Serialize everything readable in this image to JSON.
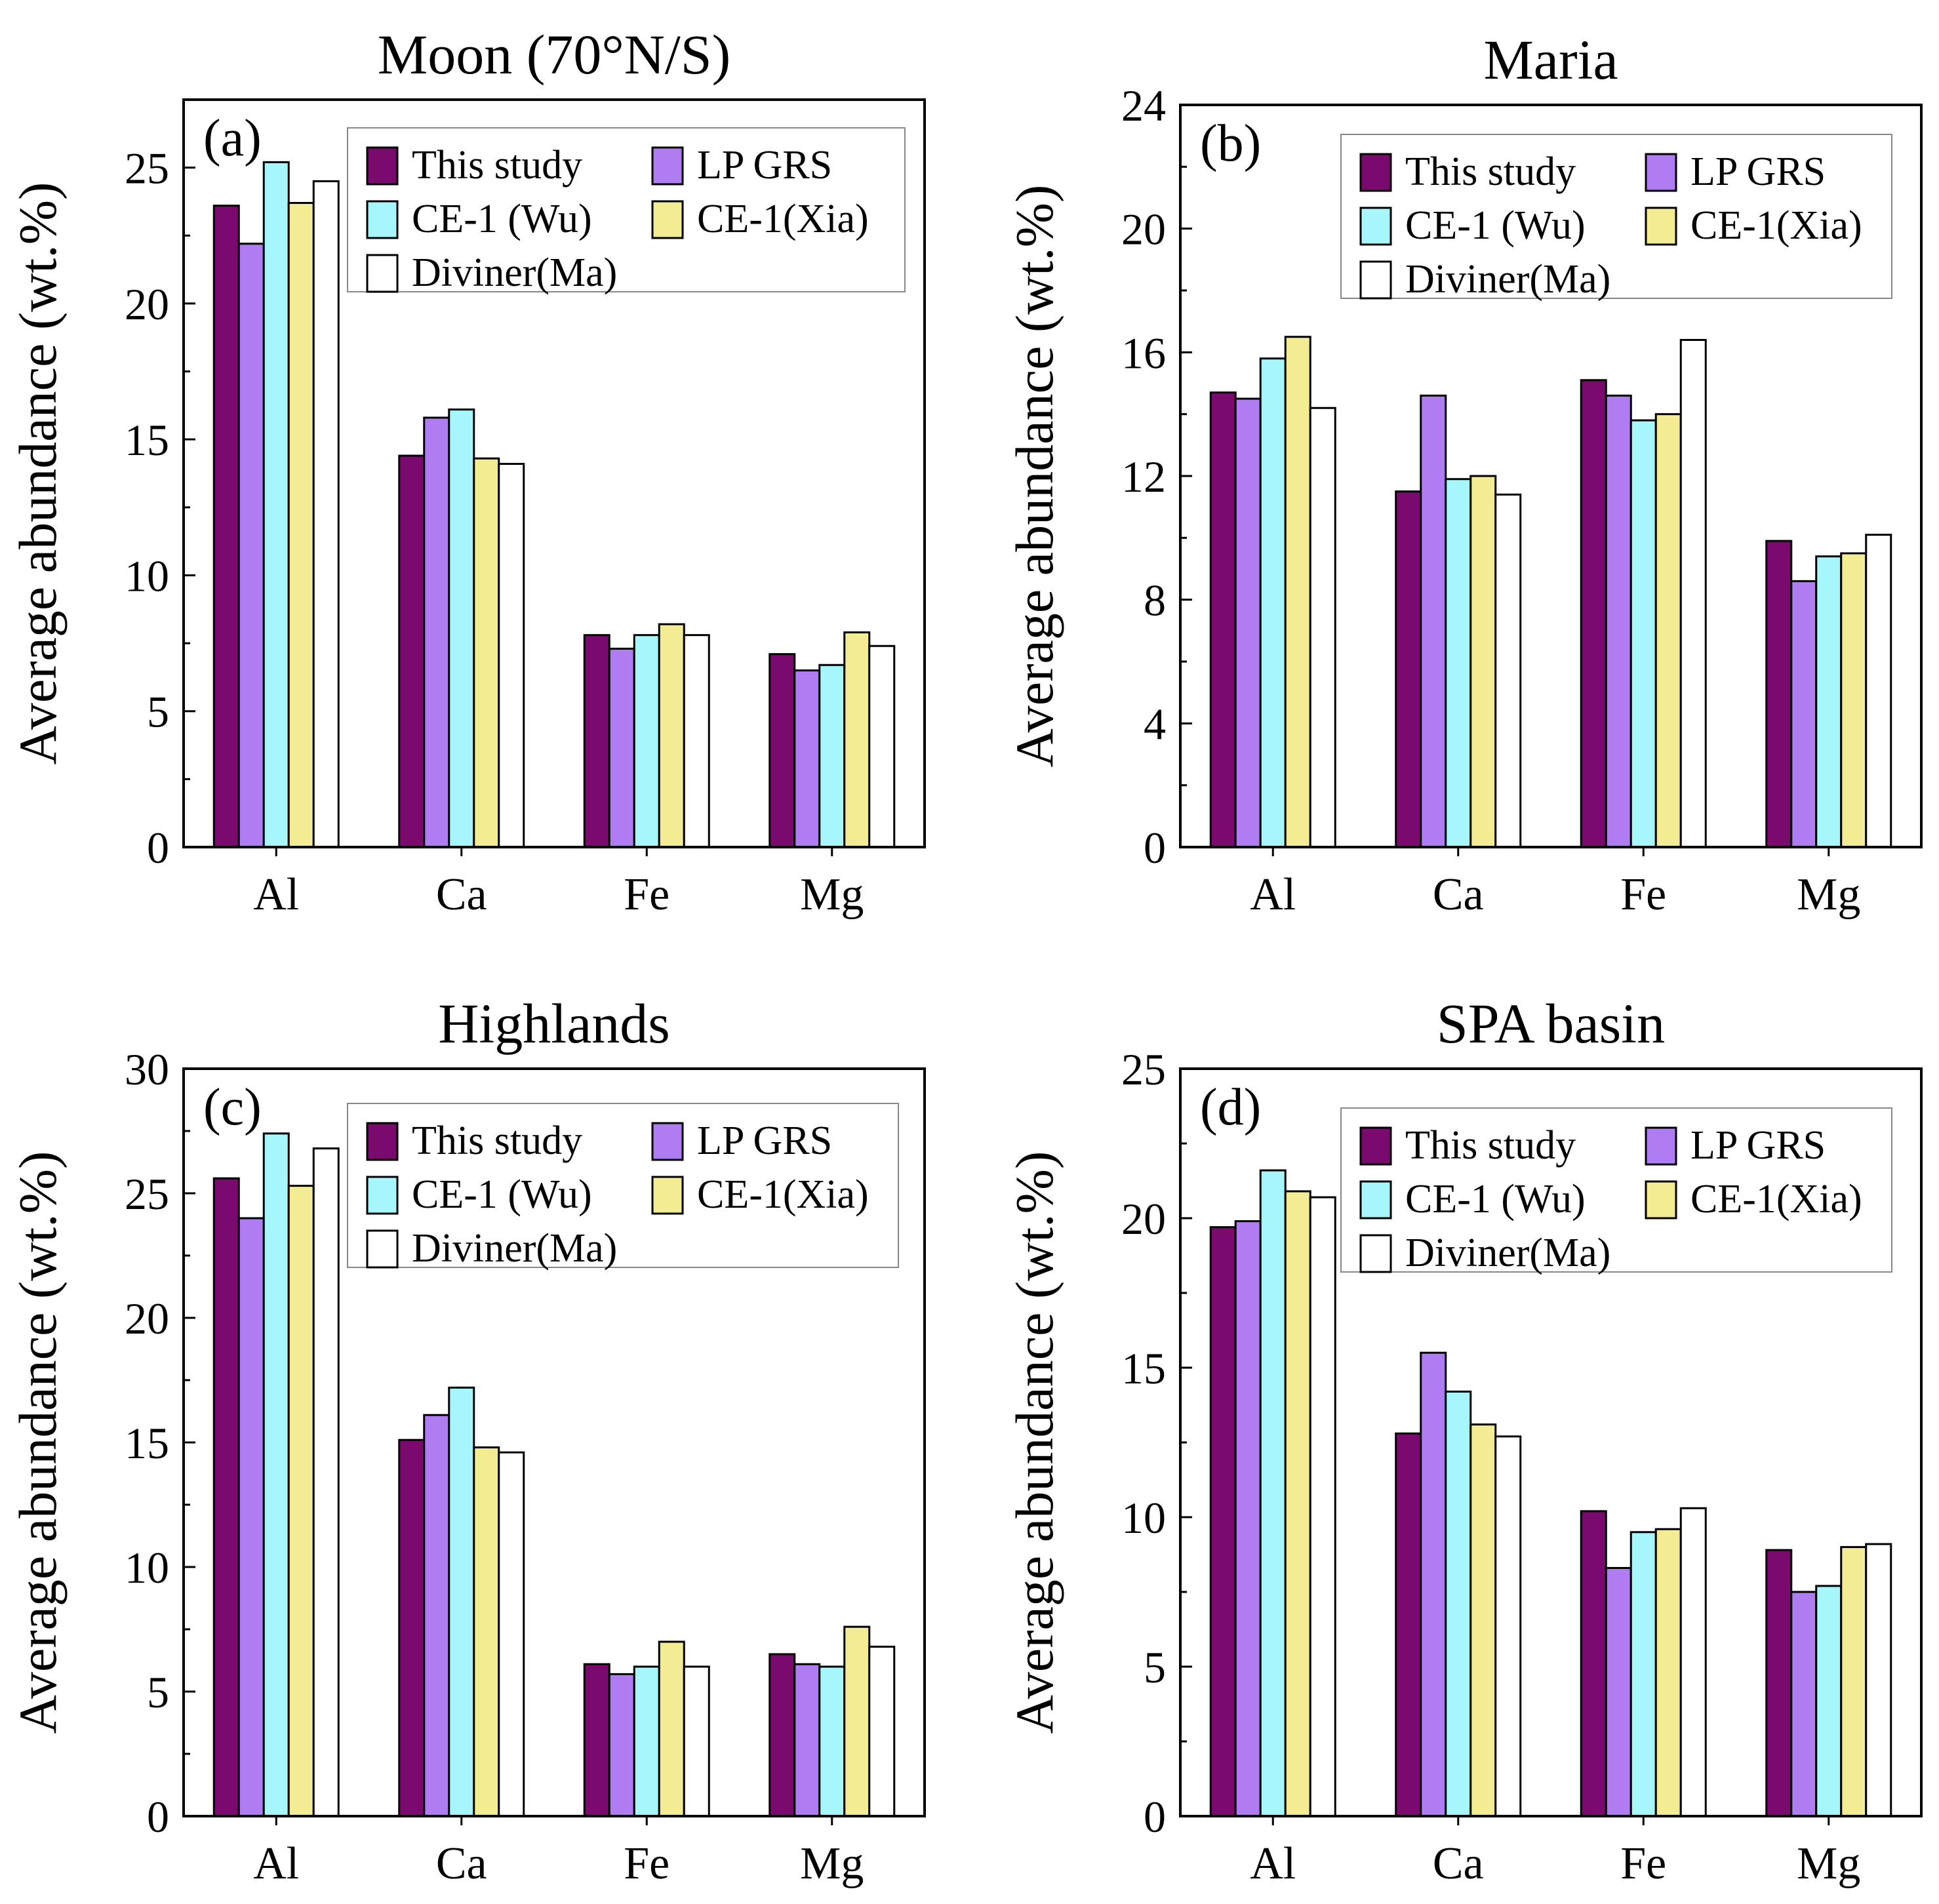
{
  "chart_data": [
    {
      "type": "bar",
      "panel_label": "(a)",
      "title": "Moon (70°N/S)",
      "xlabel": "",
      "ylabel": "Average abundance (wt.%)",
      "categories": [
        "Al",
        "Ca",
        "Fe",
        "Mg"
      ],
      "ylim": [
        0,
        27.5
      ],
      "yticks": [
        0,
        5,
        10,
        15,
        20,
        25
      ],
      "legend_position": "top-right",
      "series": [
        {
          "name": "This study",
          "values": [
            23.6,
            14.4,
            7.8,
            7.1
          ]
        },
        {
          "name": "LP GRS",
          "values": [
            22.2,
            15.8,
            7.3,
            6.5
          ]
        },
        {
          "name": "CE-1 (Wu)",
          "values": [
            25.2,
            16.1,
            7.8,
            6.7
          ]
        },
        {
          "name": "CE-1(Xia)",
          "values": [
            23.7,
            14.3,
            8.2,
            7.9
          ]
        },
        {
          "name": "Diviner(Ma)",
          "values": [
            24.5,
            14.1,
            7.8,
            7.4
          ]
        }
      ]
    },
    {
      "type": "bar",
      "panel_label": "(b)",
      "title": "Maria",
      "xlabel": "",
      "ylabel": "Average abundance (wt.%)",
      "categories": [
        "Al",
        "Ca",
        "Fe",
        "Mg"
      ],
      "ylim": [
        0,
        24
      ],
      "yticks": [
        0,
        4,
        8,
        12,
        16,
        20,
        24
      ],
      "legend_position": "top-right",
      "series": [
        {
          "name": "This study",
          "values": [
            14.7,
            11.5,
            15.1,
            9.9
          ]
        },
        {
          "name": "LP GRS",
          "values": [
            14.5,
            14.6,
            14.6,
            8.6
          ]
        },
        {
          "name": "CE-1 (Wu)",
          "values": [
            15.8,
            11.9,
            13.8,
            9.4
          ]
        },
        {
          "name": "CE-1(Xia)",
          "values": [
            16.5,
            12.0,
            14.0,
            9.5
          ]
        },
        {
          "name": "Diviner(Ma)",
          "values": [
            14.2,
            11.4,
            16.4,
            10.1
          ]
        }
      ]
    },
    {
      "type": "bar",
      "panel_label": "(c)",
      "title": "Highlands",
      "xlabel": "",
      "ylabel": "Average abundance (wt.%)",
      "categories": [
        "Al",
        "Ca",
        "Fe",
        "Mg"
      ],
      "ylim": [
        0,
        30
      ],
      "yticks": [
        0,
        5,
        10,
        15,
        20,
        25,
        30
      ],
      "legend_position": "top-right",
      "series": [
        {
          "name": "This study",
          "values": [
            25.6,
            15.1,
            6.1,
            6.5
          ]
        },
        {
          "name": "LP GRS",
          "values": [
            24.0,
            16.1,
            5.7,
            6.1
          ]
        },
        {
          "name": "CE-1 (Wu)",
          "values": [
            27.4,
            17.2,
            6.0,
            6.0
          ]
        },
        {
          "name": "CE-1(Xia)",
          "values": [
            25.3,
            14.8,
            7.0,
            7.6
          ]
        },
        {
          "name": "Diviner(Ma)",
          "values": [
            26.8,
            14.6,
            6.0,
            6.8
          ]
        }
      ]
    },
    {
      "type": "bar",
      "panel_label": "(d)",
      "title": "SPA basin",
      "xlabel": "",
      "ylabel": "Average abundance (wt.%)",
      "categories": [
        "Al",
        "Ca",
        "Fe",
        "Mg"
      ],
      "ylim": [
        0,
        25
      ],
      "yticks": [
        0,
        5,
        10,
        15,
        20,
        25
      ],
      "legend_position": "top-right",
      "series": [
        {
          "name": "This study",
          "values": [
            19.7,
            12.8,
            10.2,
            8.9
          ]
        },
        {
          "name": "LP GRS",
          "values": [
            19.9,
            15.5,
            8.3,
            7.5
          ]
        },
        {
          "name": "CE-1 (Wu)",
          "values": [
            21.6,
            14.2,
            9.5,
            7.7
          ]
        },
        {
          "name": "CE-1(Xia)",
          "values": [
            20.9,
            13.1,
            9.6,
            9.0
          ]
        },
        {
          "name": "Diviner(Ma)",
          "values": [
            20.7,
            12.7,
            10.3,
            9.1
          ]
        }
      ]
    }
  ],
  "series_colors": [
    "#7a0a6e",
    "#b07cf2",
    "#a6f7fb",
    "#f3ec92",
    "#ffffff"
  ]
}
